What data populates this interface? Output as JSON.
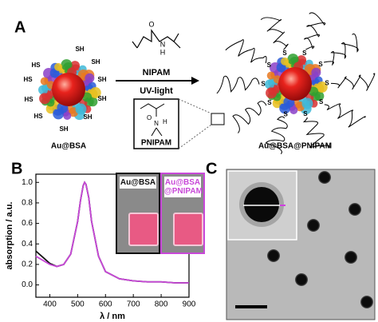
{
  "panel_a": {
    "label": "A",
    "left_particle": "Au@BSA",
    "right_particle": "Au@BSA@PNIPAM",
    "thiols": [
      "HS",
      "SH",
      "SH",
      "HS",
      "SH",
      "HS",
      "SH",
      "HS",
      "SH",
      "SH"
    ],
    "sulfurs": [
      "S",
      "S",
      "S",
      "S",
      "S",
      "S",
      "S",
      "S",
      "S",
      "S"
    ],
    "reagent": "NIPAM",
    "condition": "UV-light",
    "monomer_atoms": [
      "O",
      "N",
      "H"
    ],
    "polymer": "PNIPAM",
    "polymer_atoms": [
      "O",
      "N",
      "H"
    ]
  },
  "panel_c": {
    "label": "C"
  },
  "chart_data": {
    "type": "line",
    "panel_label": "B",
    "y_label": "absorption / a.u.",
    "x_label": "λ / nm",
    "x": [
      350,
      375,
      400,
      425,
      450,
      475,
      500,
      510,
      520,
      525,
      530,
      540,
      550,
      575,
      600,
      650,
      700,
      750,
      800,
      850,
      900
    ],
    "series": [
      {
        "name": "Au@BSA",
        "color": "#111111",
        "values": [
          0.33,
          0.27,
          0.21,
          0.18,
          0.2,
          0.3,
          0.62,
          0.82,
          0.97,
          1.0,
          0.98,
          0.85,
          0.62,
          0.28,
          0.13,
          0.06,
          0.04,
          0.03,
          0.03,
          0.02,
          0.02
        ]
      },
      {
        "name": "Au@BSA @PNIPAM",
        "color": "#c848d8",
        "values": [
          0.28,
          0.24,
          0.2,
          0.18,
          0.2,
          0.3,
          0.62,
          0.82,
          0.97,
          1.0,
          0.98,
          0.85,
          0.62,
          0.28,
          0.13,
          0.06,
          0.04,
          0.03,
          0.03,
          0.02,
          0.02
        ]
      }
    ],
    "xlim": [
      350,
      900
    ],
    "ylim": [
      -0.12,
      1.08
    ],
    "xticks": [
      400,
      500,
      600,
      700,
      800,
      900
    ],
    "yticks": [
      {
        "value": 0,
        "label": "0.0"
      },
      0.2,
      0.4,
      0.6,
      0.8,
      {
        "value": 1,
        "label": "1.0"
      }
    ]
  }
}
